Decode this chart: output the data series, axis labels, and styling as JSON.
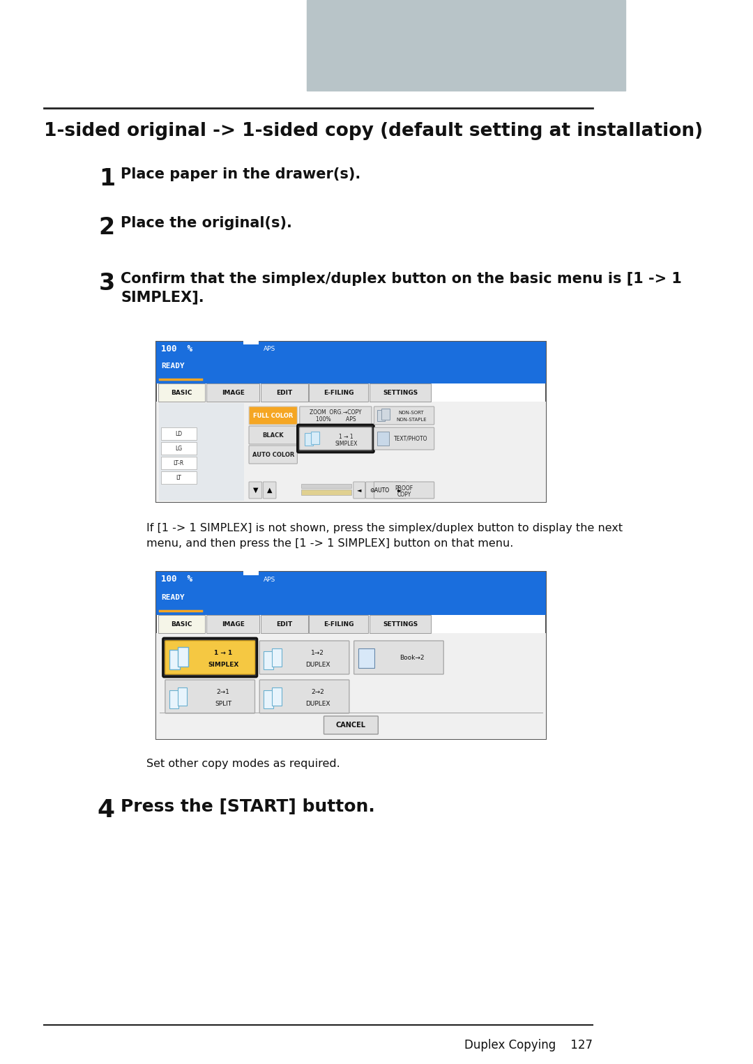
{
  "bg_color": "#ffffff",
  "header_rect_color": "#b8c4c8",
  "title": "1-sided original -> 1-sided copy (default setting at installation)",
  "step1_text": "Place paper in the drawer(s).",
  "step2_text": "Place the original(s).",
  "step3_text": "Confirm that the simplex/duplex button on the basic menu is [1 -> 1\nSIMPLEX].",
  "step4_text": "Press the [START] button.",
  "between_text": "If [1 -> 1 SIMPLEX] is not shown, press the simplex/duplex button to display the next\nmenu, and then press the [1 -> 1 SIMPLEX] button on that menu.",
  "set_text": "Set other copy modes as required.",
  "footer_text": "Duplex Copying    127",
  "blue_color": "#1a6edd",
  "orange_color": "#f5a623",
  "light_blue_text": "#5dc8e0"
}
